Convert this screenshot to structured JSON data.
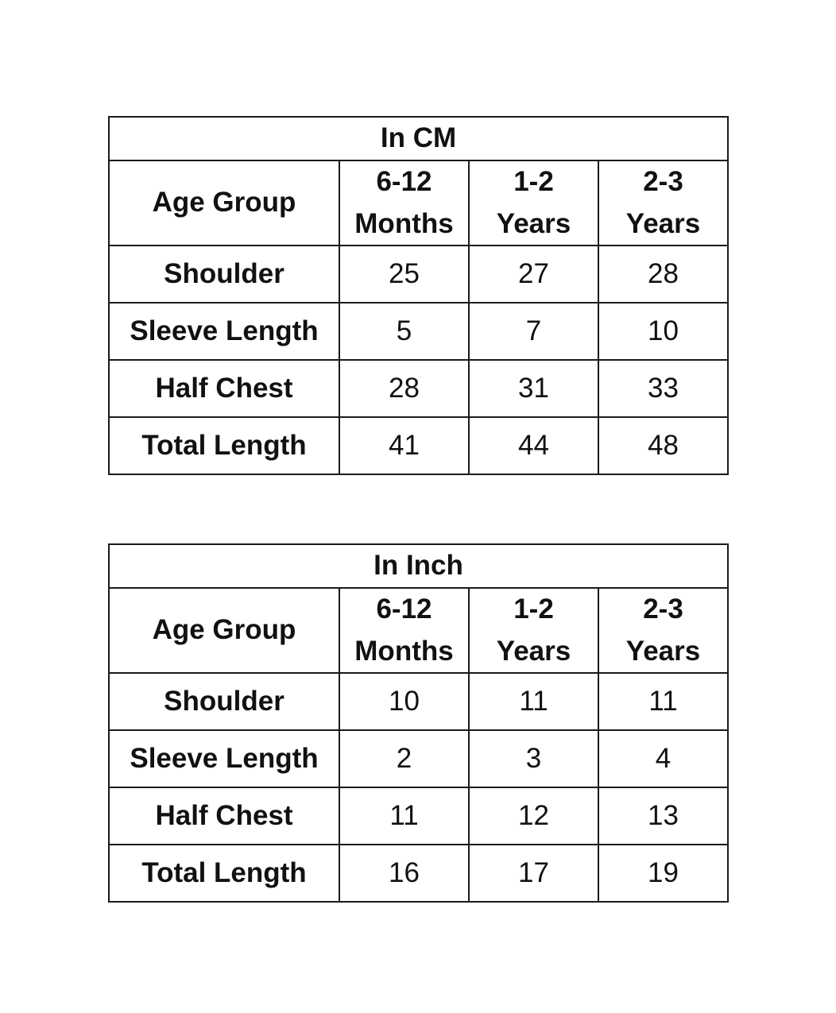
{
  "tables": [
    {
      "title": "In CM",
      "header_label": "Age Group",
      "columns": [
        {
          "line1": "6-12",
          "line2": "Months"
        },
        {
          "line1": "1-2",
          "line2": "Years"
        },
        {
          "line1": "2-3",
          "line2": "Years"
        }
      ],
      "rows": [
        {
          "label": "Shoulder",
          "values": [
            "25",
            "27",
            "28"
          ]
        },
        {
          "label": "Sleeve Length",
          "values": [
            "5",
            "7",
            "10"
          ]
        },
        {
          "label": "Half Chest",
          "values": [
            "28",
            "31",
            "33"
          ]
        },
        {
          "label": "Total Length",
          "values": [
            "41",
            "44",
            "48"
          ]
        }
      ]
    },
    {
      "title": "In Inch",
      "header_label": "Age Group",
      "columns": [
        {
          "line1": "6-12",
          "line2": "Months"
        },
        {
          "line1": "1-2",
          "line2": "Years"
        },
        {
          "line1": "2-3",
          "line2": "Years"
        }
      ],
      "rows": [
        {
          "label": "Shoulder",
          "values": [
            "10",
            "11",
            "11"
          ]
        },
        {
          "label": "Sleeve Length",
          "values": [
            "2",
            "3",
            "4"
          ]
        },
        {
          "label": "Half Chest",
          "values": [
            "11",
            "12",
            "13"
          ]
        },
        {
          "label": "Total Length",
          "values": [
            "16",
            "17",
            "19"
          ]
        }
      ]
    }
  ]
}
